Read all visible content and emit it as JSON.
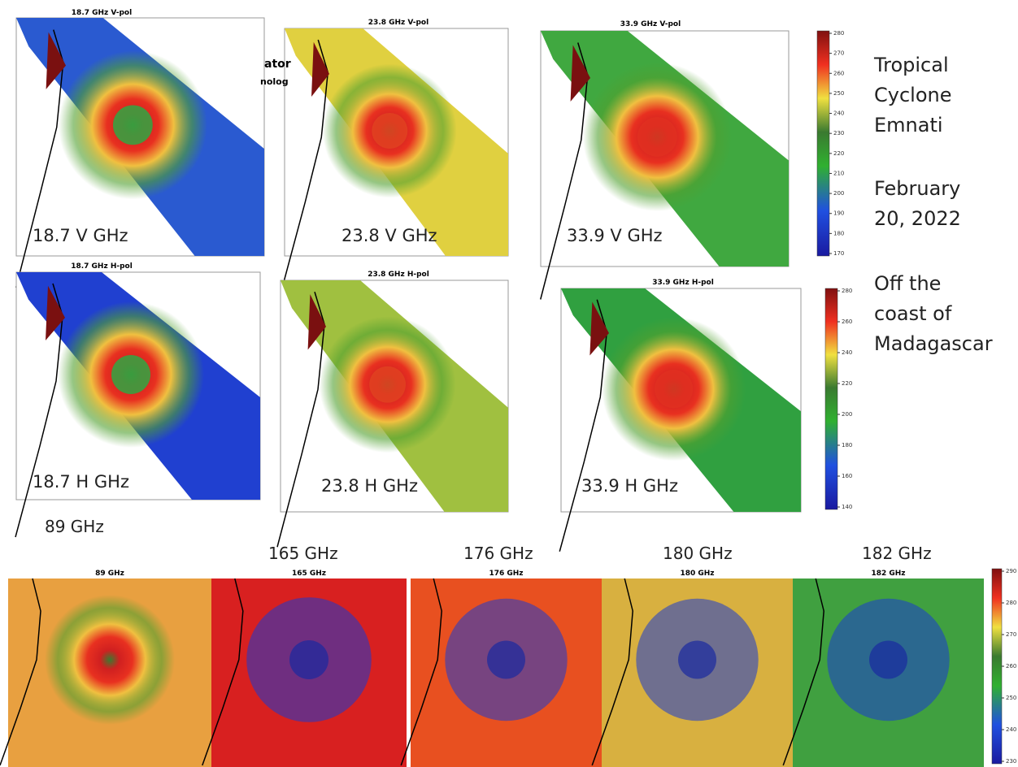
{
  "header": {
    "fragments": [
      "ator",
      "nolog"
    ]
  },
  "side_text": {
    "storm": [
      "Tropical",
      "Cyclone",
      "Emnati"
    ],
    "date": [
      "February",
      "20,  2022"
    ],
    "location": [
      "Off the",
      "coast of",
      "Madagascar"
    ]
  },
  "panels": [
    {
      "title": "18.7 GHz V-pol",
      "label": "18.7 V GHz"
    },
    {
      "title": "23.8 GHz V-pol",
      "label": "23.8 V GHz"
    },
    {
      "title": "33.9 GHz V-pol",
      "label": "33.9 V GHz"
    },
    {
      "title": "18.7 GHz H-pol",
      "label": "18.7 H GHz"
    },
    {
      "title": "23.8 GHz H-pol",
      "label": "23.8 H GHz"
    },
    {
      "title": "33.9 GHz H-pol",
      "label": "33.9 H GHz"
    }
  ],
  "bottom_panels": [
    {
      "heading": "89 GHz",
      "title": "89 GHz"
    },
    {
      "heading": "165 GHz",
      "title": "165 GHz"
    },
    {
      "heading": "176 GHz",
      "title": "176 GHz"
    },
    {
      "heading": "180 GHz",
      "title": "180 GHz"
    },
    {
      "heading": "182 GHz",
      "title": "182 GHz"
    }
  ],
  "colorbars": [
    {
      "ticks": [
        280,
        270,
        260,
        250,
        240,
        230,
        220,
        210,
        200,
        190,
        180,
        170
      ]
    },
    {
      "ticks": [
        280,
        260,
        240,
        220,
        200,
        180,
        160,
        140
      ]
    },
    {
      "ticks": [
        290,
        280,
        270,
        260,
        250,
        240,
        230
      ]
    }
  ]
}
